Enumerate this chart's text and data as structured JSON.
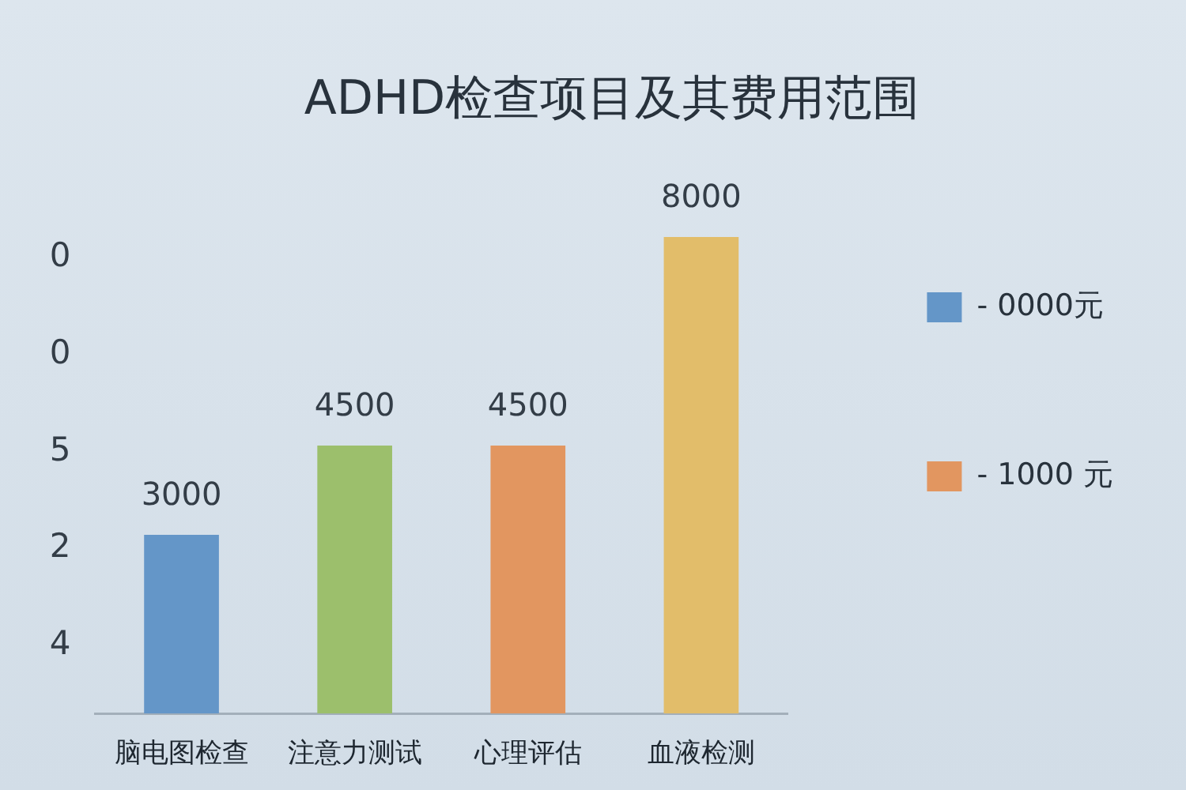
{
  "chart_data": {
    "type": "bar",
    "title": "ADHD检查项目及其费用范围",
    "categories": [
      "脑电图检查",
      "注意力测试",
      "心理评估",
      "血液检测"
    ],
    "series": [
      {
        "name": "- 0000元",
        "color": "#6496c8",
        "values": [
          3000,
          null,
          null,
          null
        ]
      },
      {
        "color": "#9cbf6c",
        "values": [
          null,
          4500,
          null,
          null
        ]
      },
      {
        "name": "- 1000 元",
        "color": "#e29660",
        "values": [
          null,
          null,
          4500,
          null
        ]
      },
      {
        "color": "#e2bd6a",
        "values": [
          null,
          null,
          null,
          8000
        ]
      }
    ],
    "data_labels": true,
    "tick_labels": "x",
    "annotations": [
      "0",
      "0",
      "5",
      "2",
      "4"
    ],
    "legend": "right"
  }
}
